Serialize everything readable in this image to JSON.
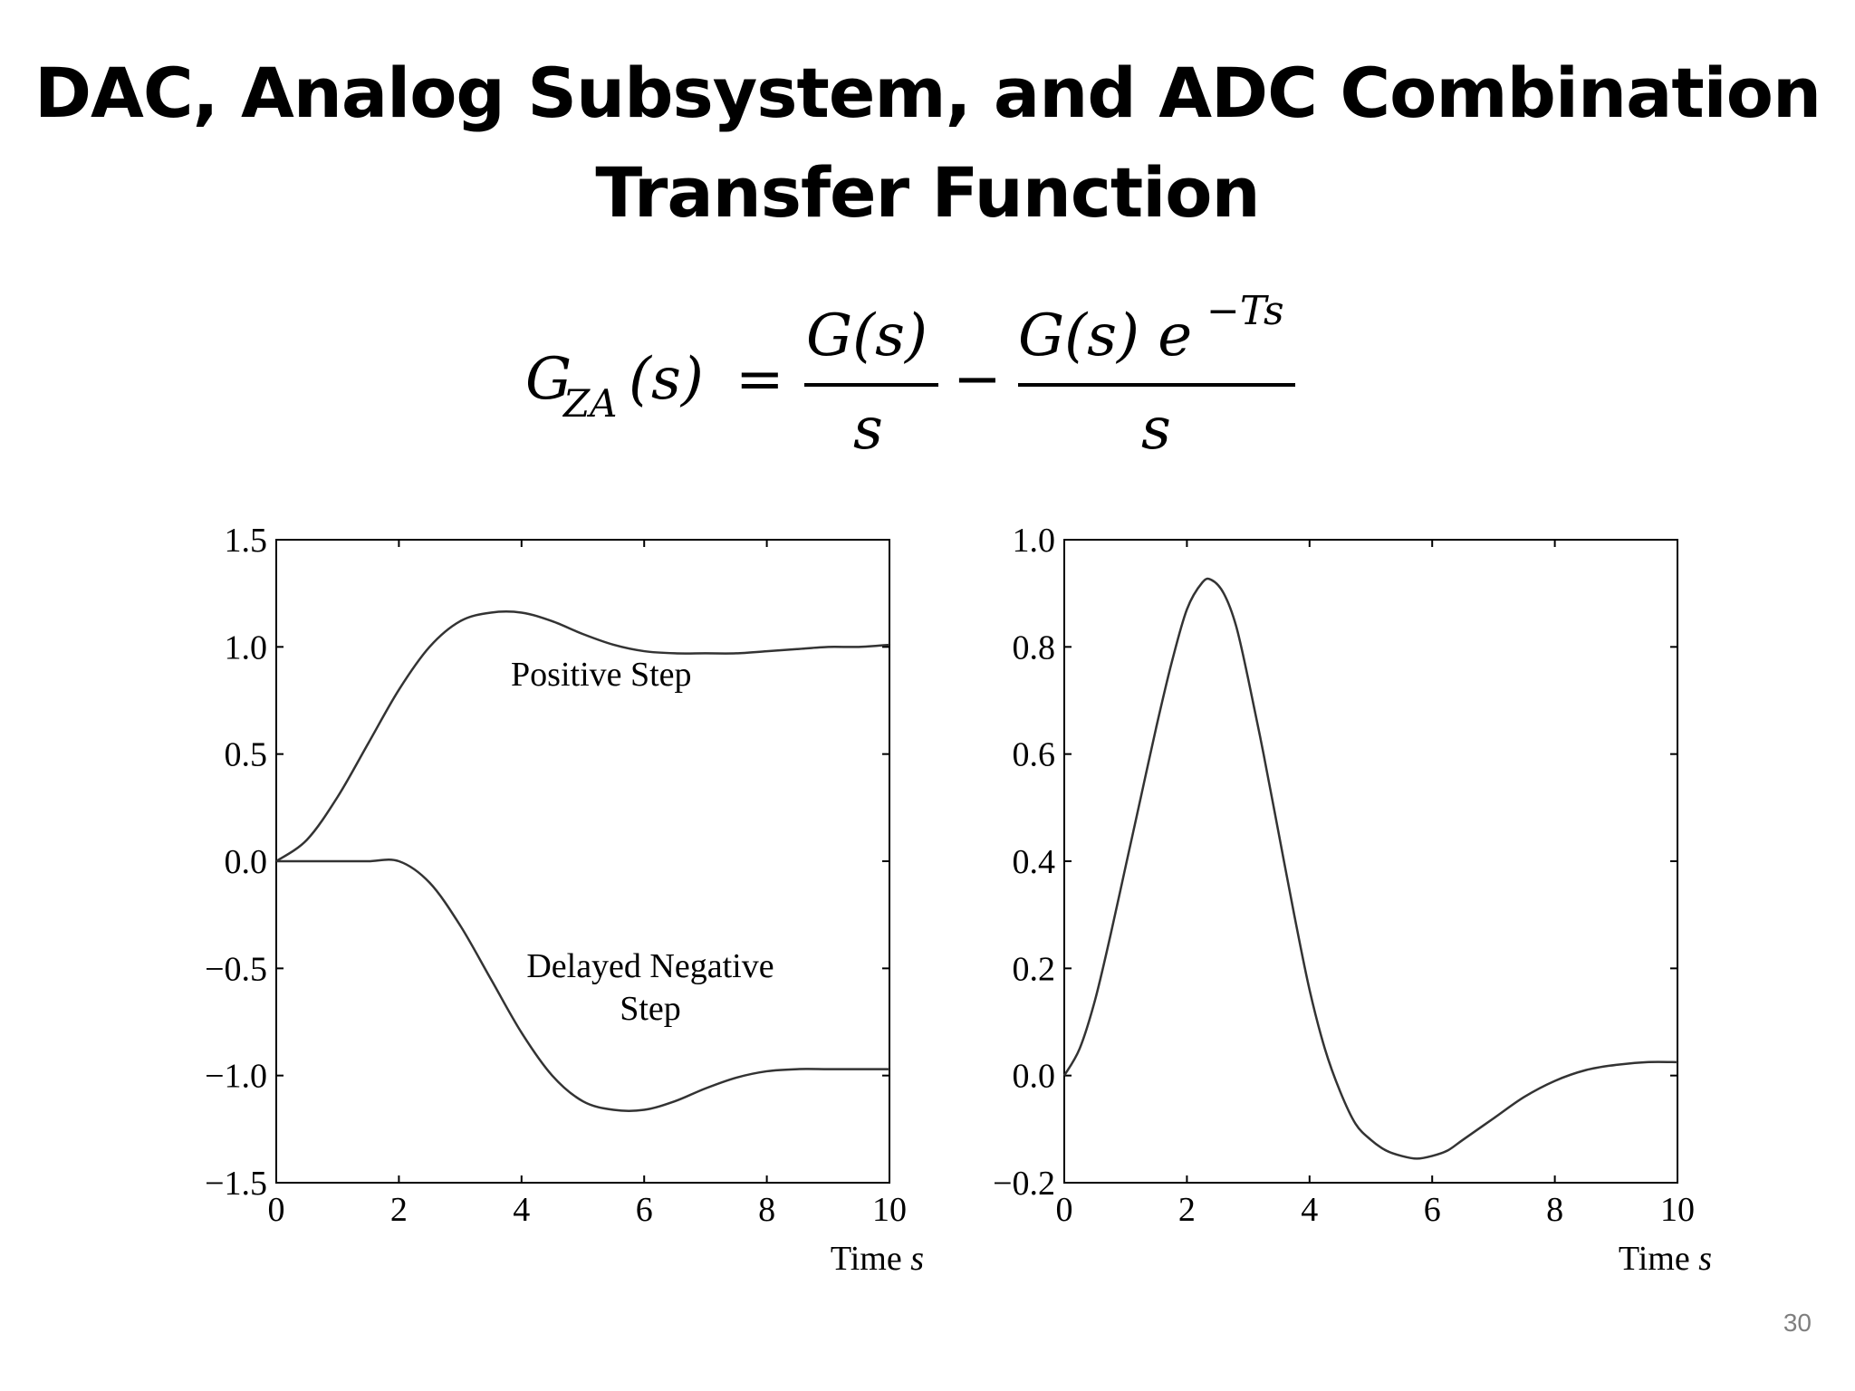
{
  "slide": {
    "title_line1": "DAC, Analog Subsystem, and ADC Combination",
    "title_line2": "Transfer Function",
    "page_number": "30"
  },
  "formula": {
    "lhs_G": "G",
    "lhs_sub": "ZA",
    "lhs_arg": "(s)",
    "equals": "=",
    "num1": "G(s)",
    "den1": "s",
    "minus": "−",
    "num2": "G(s) e",
    "num2_exp": "−Ts",
    "den2": "s"
  },
  "chart_data": [
    {
      "type": "line",
      "xlabel": "Time s",
      "ylabel": "",
      "xlim": [
        0,
        10
      ],
      "ylim": [
        -1.5,
        1.5
      ],
      "xticks": [
        "0",
        "2",
        "4",
        "6",
        "8",
        "10"
      ],
      "yticks": [
        "1.5",
        "1.0",
        "0.5",
        "0.0",
        "−0.5",
        "−1.0",
        "−1.5"
      ],
      "grid": false,
      "annotations": [
        "Positive Step",
        "Delayed Negative",
        "Step"
      ],
      "series": [
        {
          "name": "Positive Step",
          "x": [
            0,
            0.5,
            1,
            1.5,
            2,
            2.5,
            3,
            3.5,
            4,
            4.5,
            5,
            5.5,
            6,
            6.5,
            7,
            7.5,
            8,
            8.5,
            9,
            9.5,
            10
          ],
          "y": [
            0,
            0.1,
            0.3,
            0.55,
            0.8,
            1.0,
            1.12,
            1.16,
            1.16,
            1.12,
            1.06,
            1.01,
            0.98,
            0.97,
            0.97,
            0.97,
            0.98,
            0.99,
            1.0,
            1.0,
            1.01
          ]
        },
        {
          "name": "Delayed Negative Step",
          "x": [
            0,
            0.5,
            1,
            1.5,
            2,
            2.5,
            3,
            3.5,
            4,
            4.5,
            5,
            5.5,
            6,
            6.5,
            7,
            7.5,
            8,
            8.5,
            9,
            9.5,
            10
          ],
          "y": [
            0,
            0,
            0,
            0,
            0,
            -0.1,
            -0.3,
            -0.55,
            -0.8,
            -1.0,
            -1.12,
            -1.16,
            -1.16,
            -1.12,
            -1.06,
            -1.01,
            -0.98,
            -0.97,
            -0.97,
            -0.97,
            -0.97
          ]
        }
      ]
    },
    {
      "type": "line",
      "xlabel": "Time s",
      "ylabel": "",
      "xlim": [
        0,
        10
      ],
      "ylim": [
        -0.2,
        1.0
      ],
      "xticks": [
        "0",
        "2",
        "4",
        "6",
        "8",
        "10"
      ],
      "yticks": [
        "1.0",
        "0.8",
        "0.6",
        "0.4",
        "0.2",
        "0.0",
        "−0.2"
      ],
      "grid": false,
      "series": [
        {
          "name": "",
          "x": [
            0,
            0.25,
            0.5,
            0.75,
            1,
            1.25,
            1.5,
            1.75,
            2,
            2.25,
            2.4,
            2.6,
            2.8,
            3,
            3.25,
            3.5,
            3.75,
            4,
            4.25,
            4.5,
            4.75,
            5,
            5.25,
            5.5,
            5.75,
            6,
            6.25,
            6.5,
            7,
            7.5,
            8,
            8.5,
            9,
            9.5,
            10
          ],
          "y": [
            0,
            0.05,
            0.14,
            0.26,
            0.39,
            0.52,
            0.65,
            0.77,
            0.87,
            0.92,
            0.925,
            0.9,
            0.84,
            0.74,
            0.6,
            0.45,
            0.3,
            0.16,
            0.05,
            -0.03,
            -0.09,
            -0.12,
            -0.14,
            -0.15,
            -0.155,
            -0.15,
            -0.14,
            -0.12,
            -0.08,
            -0.04,
            -0.01,
            0.01,
            0.02,
            0.025,
            0.025
          ]
        }
      ]
    }
  ],
  "chart_text": {
    "left": {
      "positive_label": "Positive Step",
      "negative_label_1": "Delayed Negative",
      "negative_label_2": "Step",
      "xlabel_text": "Time ",
      "xlabel_unit": "s"
    },
    "right": {
      "xlabel_text": "Time ",
      "xlabel_unit": "s"
    }
  }
}
